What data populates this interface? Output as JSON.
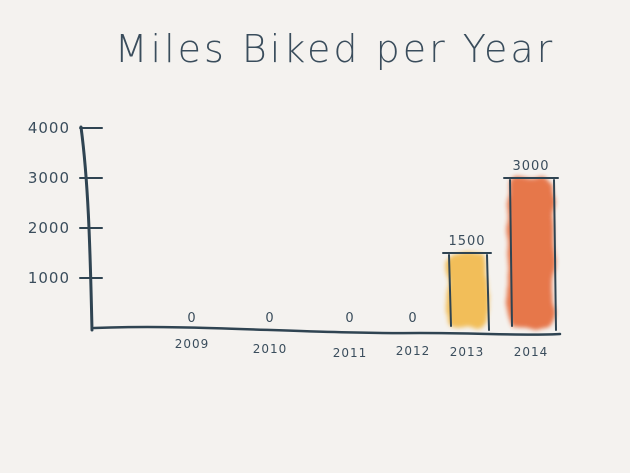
{
  "chart_data": {
    "type": "bar",
    "title": "Miles Biked per Year",
    "xlabel": "",
    "ylabel": "",
    "categories": [
      "2009",
      "2010",
      "2011",
      "2012",
      "2013",
      "2014"
    ],
    "values": [
      0,
      0,
      0,
      0,
      1500,
      3000
    ],
    "value_labels": [
      "0",
      "0",
      "0",
      "0",
      "1500",
      "3000"
    ],
    "y_ticks": [
      1000,
      2000,
      3000,
      4000
    ],
    "y_tick_labels": [
      "1000",
      "2000",
      "3000",
      "4000"
    ],
    "ylim": [
      0,
      4000
    ],
    "grid": false,
    "colors": {
      "ink": "#2f4452",
      "bar_2013": "#f2b640",
      "bar_2014": "#e4622d",
      "background": "#f4f2ef"
    }
  }
}
